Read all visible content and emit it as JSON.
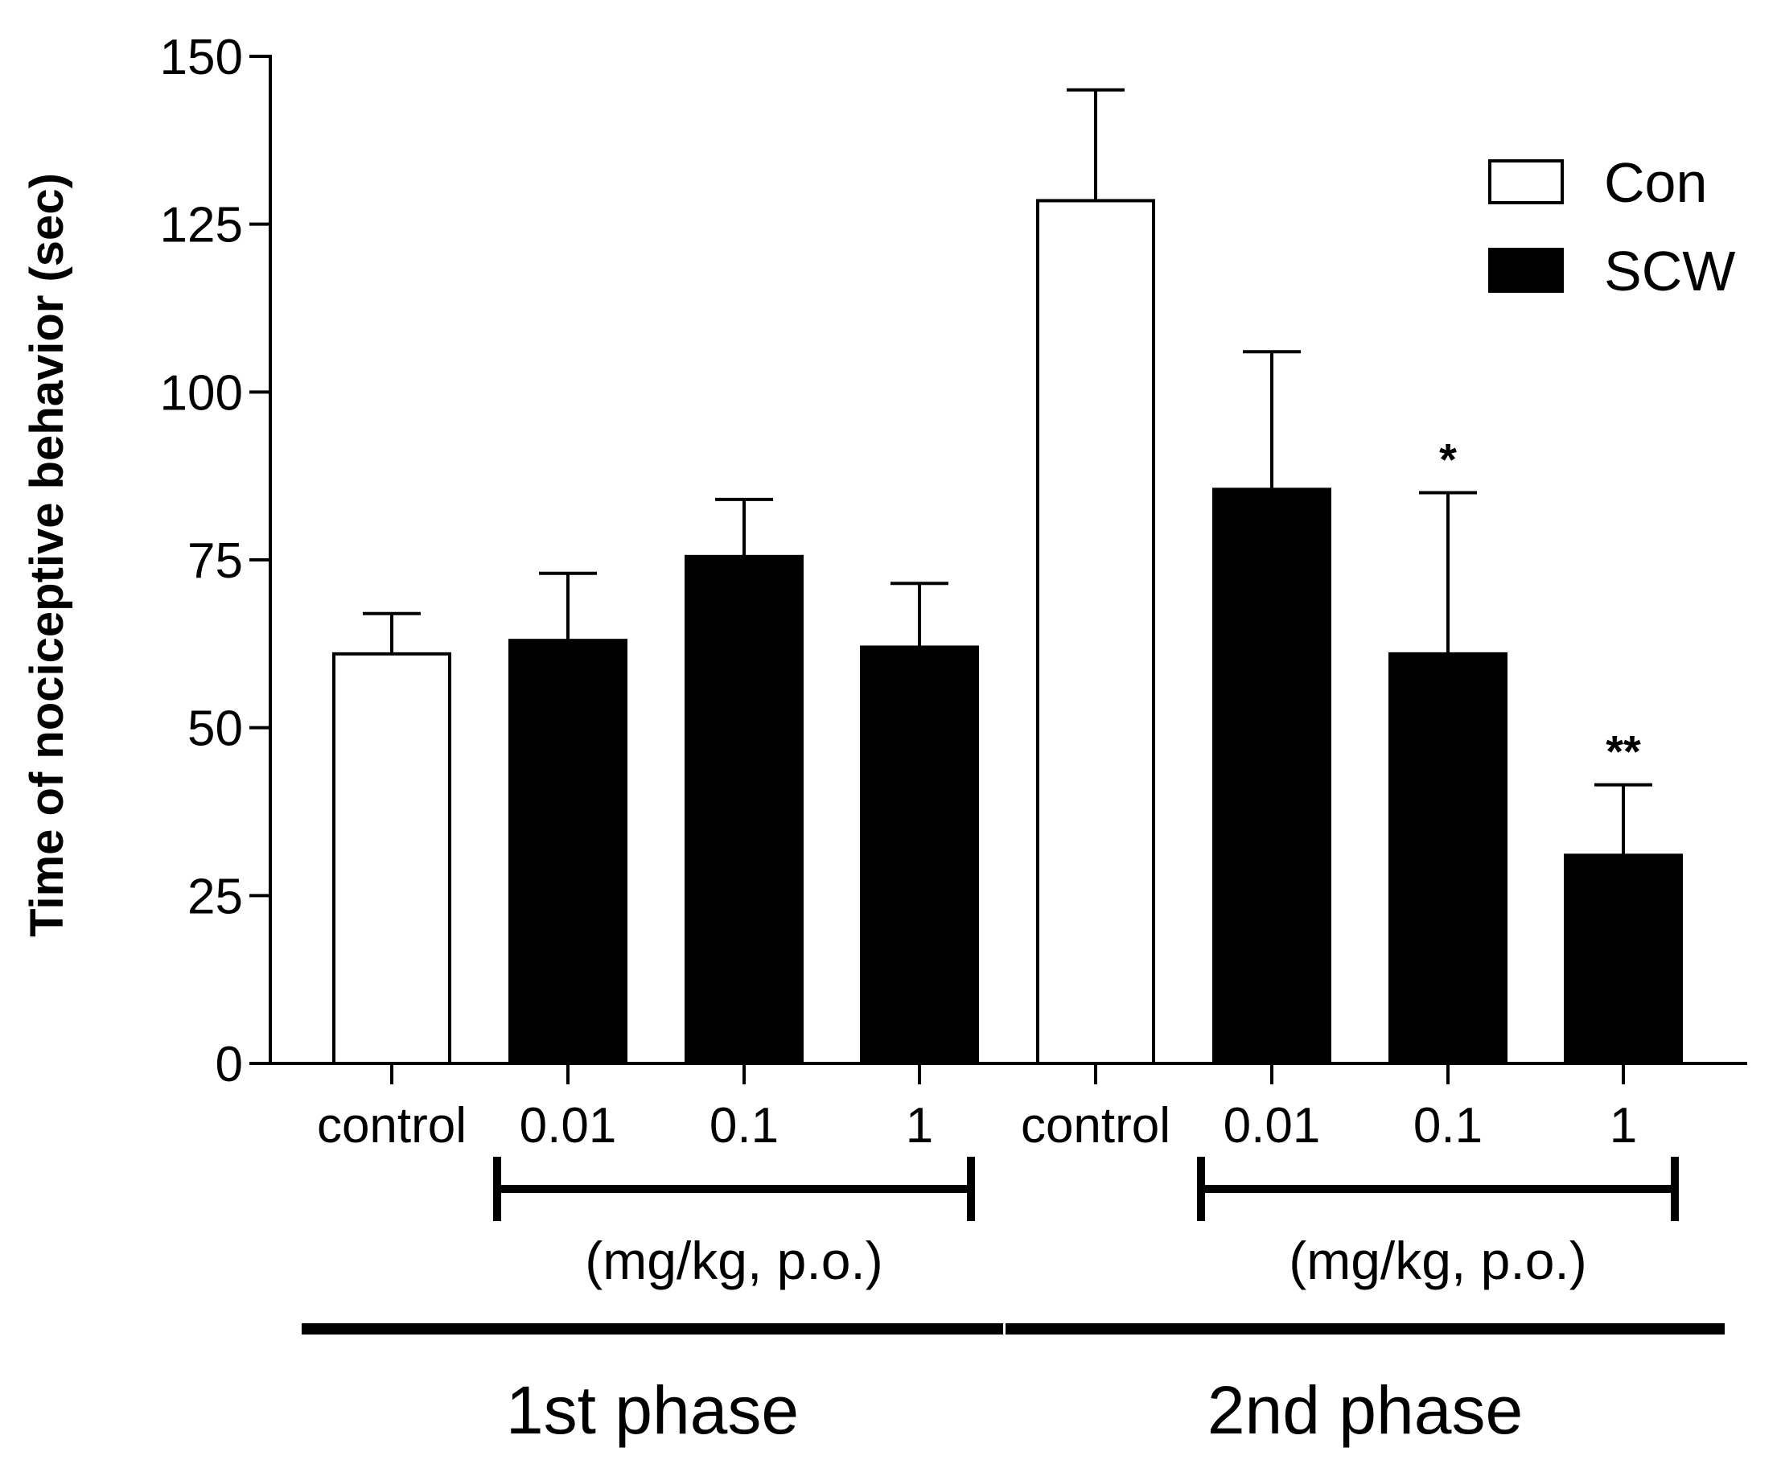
{
  "chart_data": {
    "type": "bar",
    "ylabel": "Time of nociceptive behavior (sec)",
    "ylim": [
      0,
      150
    ],
    "yticks": [
      0,
      25,
      50,
      75,
      100,
      125,
      150
    ],
    "categories": [
      "control",
      "0.01",
      "0.1",
      "1",
      "control",
      "0.01",
      "0.1",
      "1"
    ],
    "values": [
      61,
      63,
      75.5,
      62,
      128.5,
      85.5,
      61,
      31
    ],
    "errors": [
      6,
      10,
      8.5,
      9.5,
      16.5,
      20.5,
      24,
      10.5
    ],
    "series_of_bar": [
      "Con",
      "SCW",
      "SCW",
      "SCW",
      "Con",
      "SCW",
      "SCW",
      "SCW"
    ],
    "significance": [
      "",
      "",
      "",
      "",
      "",
      "",
      "*",
      "**"
    ],
    "legend": [
      {
        "name": "Con",
        "fill": "#ffffff"
      },
      {
        "name": "SCW",
        "fill": "#000000"
      }
    ],
    "legend_position": "top-right",
    "dose_unit_label": "(mg/kg, p.o.)",
    "groups": [
      {
        "label": "1st phase",
        "bars": [
          0,
          1,
          2,
          3
        ],
        "dose_bars": [
          1,
          2,
          3
        ]
      },
      {
        "label": "2nd phase",
        "bars": [
          4,
          5,
          6,
          7
        ],
        "dose_bars": [
          5,
          6,
          7
        ]
      }
    ]
  }
}
